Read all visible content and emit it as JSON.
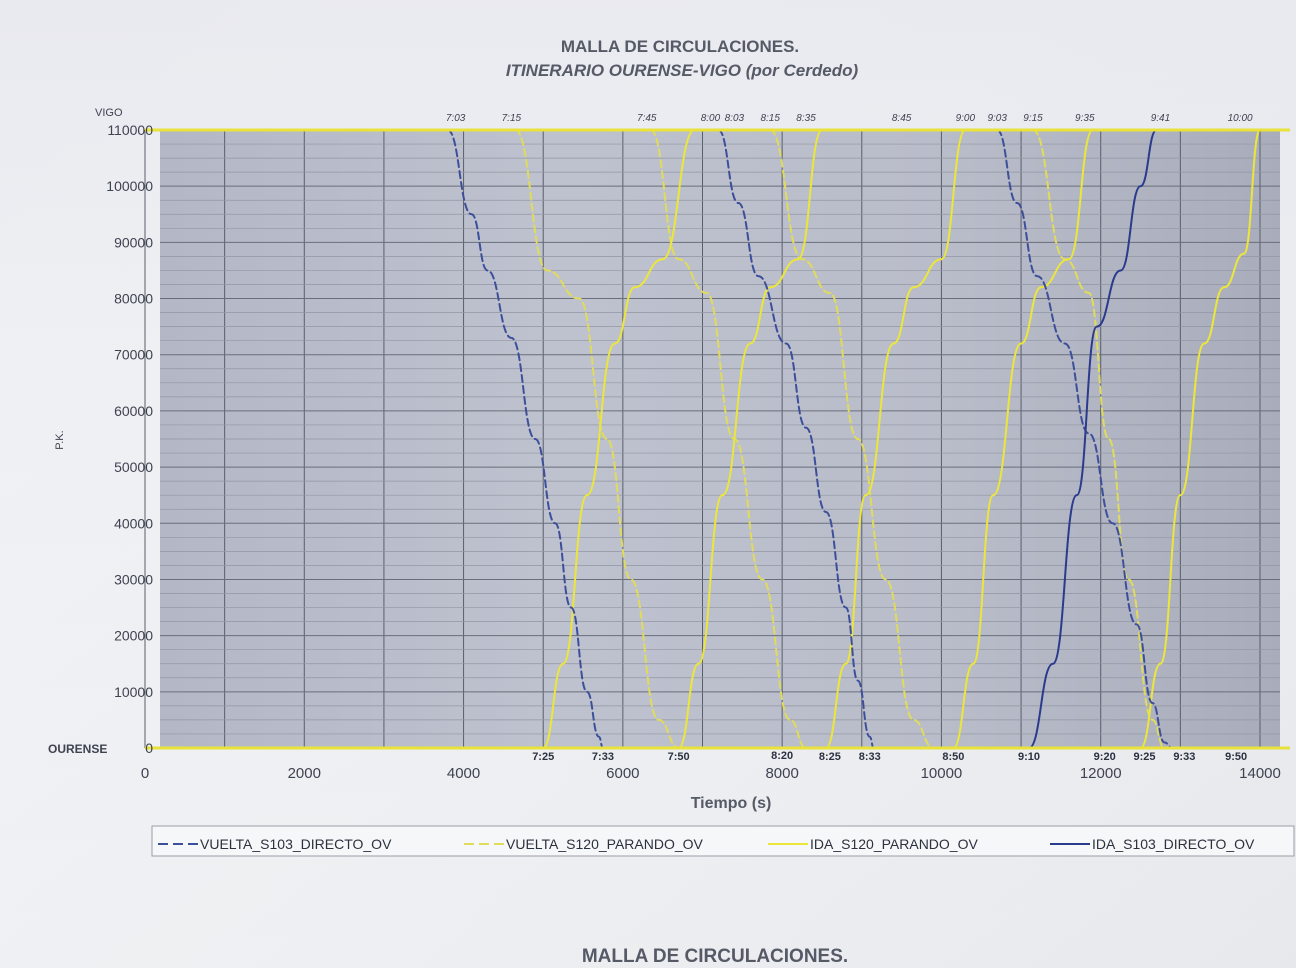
{
  "chart_data": {
    "type": "line",
    "title": "MALLA DE CIRCULACIONES.",
    "subtitle": "ITINERARIO OURENSE-VIGO (por Cerdedo)",
    "xlabel": "Tiempo (s)",
    "ylabel": "P.K.",
    "xlim": [
      0,
      14000
    ],
    "ylim": [
      0,
      110000
    ],
    "x_ticks": [
      0,
      2000,
      4000,
      6000,
      8000,
      10000,
      12000,
      14000
    ],
    "y_ticks": [
      0,
      10000,
      20000,
      30000,
      40000,
      50000,
      60000,
      70000,
      80000,
      90000,
      100000,
      110000
    ],
    "y_station_labels": {
      "top": "VIGO",
      "bottom": "OURENSE"
    },
    "grid": true,
    "legend": "bottom",
    "top_time_labels": [
      {
        "x": 3900,
        "label": "7:03"
      },
      {
        "x": 4600,
        "label": "7:15"
      },
      {
        "x": 6300,
        "label": "7:45"
      },
      {
        "x": 7100,
        "label": "8:00"
      },
      {
        "x": 7400,
        "label": "8:03"
      },
      {
        "x": 7850,
        "label": "8:15"
      },
      {
        "x": 8300,
        "label": "8:35"
      },
      {
        "x": 9500,
        "label": "8:45"
      },
      {
        "x": 10300,
        "label": "9:00"
      },
      {
        "x": 10700,
        "label": "9:03"
      },
      {
        "x": 11150,
        "label": "9:15"
      },
      {
        "x": 11800,
        "label": "9:35"
      },
      {
        "x": 12750,
        "label": "9:41"
      },
      {
        "x": 13750,
        "label": "10:00"
      }
    ],
    "bottom_time_labels": [
      {
        "x": 5000,
        "label": "7:25"
      },
      {
        "x": 5750,
        "label": "7:33"
      },
      {
        "x": 6700,
        "label": "7:50"
      },
      {
        "x": 8000,
        "label": "8:20"
      },
      {
        "x": 8600,
        "label": "8:25"
      },
      {
        "x": 9100,
        "label": "8:33"
      },
      {
        "x": 10150,
        "label": "8:50"
      },
      {
        "x": 11100,
        "label": "9:10"
      },
      {
        "x": 12050,
        "label": "9:20"
      },
      {
        "x": 12550,
        "label": "9:25"
      },
      {
        "x": 13050,
        "label": "9:33"
      },
      {
        "x": 13700,
        "label": "9:50"
      }
    ],
    "series": [
      {
        "name": "VUELTA_S103_DIRECTO_OV",
        "color": "#3d4f9a",
        "dash": true,
        "trips": [
          [
            [
              3800,
              110000
            ],
            [
              4100,
              95000
            ],
            [
              4300,
              85000
            ],
            [
              4600,
              73000
            ],
            [
              4900,
              55000
            ],
            [
              5150,
              40000
            ],
            [
              5350,
              25000
            ],
            [
              5550,
              10000
            ],
            [
              5700,
              2000
            ],
            [
              5750,
              0
            ]
          ],
          [
            [
              7200,
              110000
            ],
            [
              7450,
              97000
            ],
            [
              7700,
              84000
            ],
            [
              8050,
              72000
            ],
            [
              8300,
              57000
            ],
            [
              8550,
              42000
            ],
            [
              8800,
              25000
            ],
            [
              8950,
              12000
            ],
            [
              9100,
              2000
            ],
            [
              9150,
              0
            ]
          ],
          [
            [
              10700,
              110000
            ],
            [
              10950,
              97000
            ],
            [
              11200,
              84000
            ],
            [
              11550,
              72000
            ],
            [
              11850,
              56000
            ],
            [
              12150,
              40000
            ],
            [
              12450,
              22000
            ],
            [
              12650,
              8000
            ],
            [
              12800,
              1000
            ],
            [
              12900,
              0
            ]
          ]
        ]
      },
      {
        "name": "VUELTA_S120_PARANDO_OV",
        "color": "#e0dc5a",
        "dash": true,
        "trips": [
          [
            [
              4650,
              110000
            ],
            [
              5050,
              85000
            ],
            [
              5450,
              80000
            ],
            [
              5800,
              55000
            ],
            [
              6100,
              30000
            ],
            [
              6450,
              5000
            ],
            [
              6700,
              0
            ]
          ],
          [
            [
              6350,
              110000
            ],
            [
              6700,
              87000
            ],
            [
              7050,
              81000
            ],
            [
              7400,
              55000
            ],
            [
              7750,
              30000
            ],
            [
              8100,
              5000
            ],
            [
              8300,
              0
            ]
          ],
          [
            [
              7850,
              110000
            ],
            [
              8250,
              87000
            ],
            [
              8600,
              81000
            ],
            [
              8950,
              55000
            ],
            [
              9300,
              30000
            ],
            [
              9650,
              5000
            ],
            [
              9900,
              0
            ]
          ],
          [
            [
              11150,
              110000
            ],
            [
              11550,
              87000
            ],
            [
              11850,
              81000
            ],
            [
              12100,
              55000
            ],
            [
              12350,
              30000
            ],
            [
              12650,
              5000
            ],
            [
              12800,
              0
            ]
          ]
        ]
      },
      {
        "name": "IDA_S120_PARANDO_OV",
        "color": "#ece63a",
        "dash": false,
        "trips": [
          [
            [
              5000,
              0
            ],
            [
              5250,
              15000
            ],
            [
              5550,
              45000
            ],
            [
              5900,
              72000
            ],
            [
              6150,
              82000
            ],
            [
              6500,
              87000
            ],
            [
              6900,
              110000
            ]
          ],
          [
            [
              6700,
              0
            ],
            [
              6950,
              15000
            ],
            [
              7250,
              45000
            ],
            [
              7600,
              72000
            ],
            [
              7850,
              82000
            ],
            [
              8200,
              87000
            ],
            [
              8500,
              110000
            ]
          ],
          [
            [
              8550,
              0
            ],
            [
              8800,
              15000
            ],
            [
              9050,
              45000
            ],
            [
              9400,
              72000
            ],
            [
              9650,
              82000
            ],
            [
              10000,
              87000
            ],
            [
              10300,
              110000
            ]
          ],
          [
            [
              10150,
              0
            ],
            [
              10400,
              15000
            ],
            [
              10650,
              45000
            ],
            [
              11000,
              72000
            ],
            [
              11250,
              82000
            ],
            [
              11600,
              87000
            ],
            [
              11900,
              110000
            ]
          ],
          [
            [
              12500,
              0
            ],
            [
              12750,
              15000
            ],
            [
              13000,
              45000
            ],
            [
              13300,
              72000
            ],
            [
              13550,
              82000
            ],
            [
              13800,
              88000
            ],
            [
              14000,
              110000
            ]
          ]
        ]
      },
      {
        "name": "IDA_S103_DIRECTO_OV",
        "color": "#2a3a8c",
        "dash": false,
        "trips": [
          [
            [
              11100,
              0
            ],
            [
              11400,
              15000
            ],
            [
              11700,
              45000
            ],
            [
              11950,
              75000
            ],
            [
              12250,
              85000
            ],
            [
              12500,
              100000
            ],
            [
              12700,
              110000
            ]
          ]
        ]
      }
    ]
  },
  "footer_title": "MALLA DE CIRCULACIONES."
}
